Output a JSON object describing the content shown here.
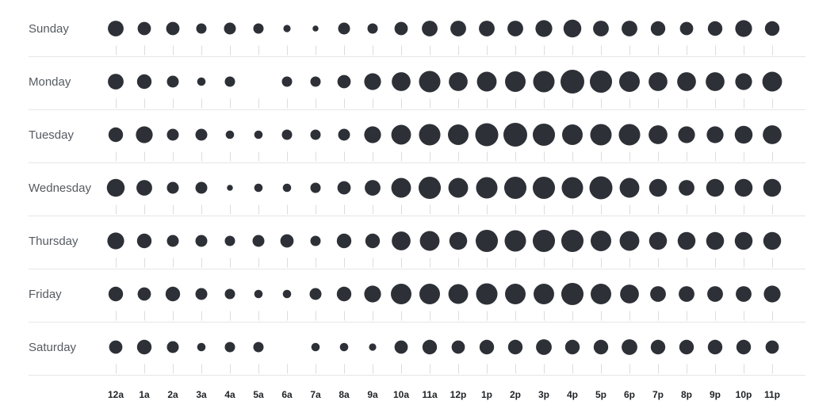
{
  "chart_data": {
    "type": "scatter",
    "title": "",
    "xlabel": "",
    "ylabel": "",
    "x": [
      "12a",
      "1a",
      "2a",
      "3a",
      "4a",
      "5a",
      "6a",
      "7a",
      "8a",
      "9a",
      "10a",
      "11a",
      "12p",
      "1p",
      "2p",
      "3p",
      "4p",
      "5p",
      "6p",
      "7p",
      "8p",
      "9p",
      "10p",
      "11p"
    ],
    "y": [
      "Sunday",
      "Monday",
      "Tuesday",
      "Wednesday",
      "Thursday",
      "Friday",
      "Saturday"
    ],
    "size_scale_max": 16,
    "series": [
      {
        "values": [
          7,
          5,
          5,
          3,
          4,
          3,
          1.5,
          1,
          4,
          3,
          5,
          7,
          7,
          7,
          7,
          8,
          9,
          7,
          7,
          6,
          5,
          6,
          8,
          6
        ]
      },
      {
        "values": [
          7,
          6,
          4,
          2,
          3,
          0,
          3,
          3,
          5,
          8,
          10,
          13,
          10,
          11,
          12,
          13,
          16,
          14,
          12,
          10,
          10,
          10,
          8,
          11
        ]
      },
      {
        "values": [
          6,
          8,
          4,
          4,
          2,
          2,
          3,
          3,
          4,
          8,
          11,
          13,
          12,
          15,
          16,
          14,
          12,
          13,
          13,
          10,
          8,
          8,
          9,
          10
        ]
      },
      {
        "values": [
          9,
          7,
          4,
          4,
          1,
          2,
          2,
          3,
          5,
          7,
          11,
          14,
          11,
          13,
          14,
          14,
          13,
          15,
          11,
          9,
          7,
          9,
          9,
          9
        ]
      },
      {
        "values": [
          8,
          6,
          4,
          4,
          3,
          4,
          5,
          3,
          6,
          6,
          10,
          11,
          9,
          14,
          13,
          14,
          14,
          12,
          11,
          9,
          9,
          9,
          9,
          9
        ]
      },
      {
        "values": [
          6,
          5,
          6,
          4,
          3,
          2,
          2,
          4,
          6,
          8,
          12,
          12,
          11,
          13,
          12,
          12,
          14,
          12,
          10,
          7,
          7,
          7,
          7,
          8
        ]
      },
      {
        "values": [
          5,
          6,
          4,
          2,
          3,
          3,
          0,
          2,
          2,
          1.5,
          5,
          6,
          5,
          6,
          6,
          7,
          6,
          6,
          7,
          6,
          6,
          6,
          6,
          5
        ]
      }
    ]
  }
}
